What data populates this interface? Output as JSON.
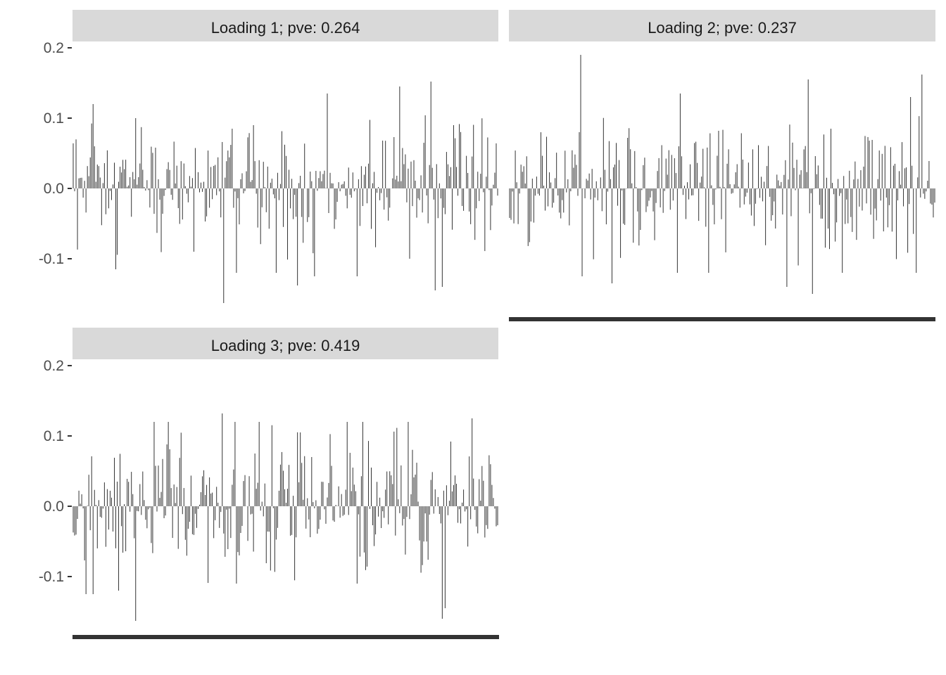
{
  "chart_data": {
    "type": "bar",
    "layout": "faceted 2x2 grid, 3 panels, shared y axis",
    "ylim": [
      -0.19,
      0.22
    ],
    "yticks": [
      -0.1,
      0.0,
      0.1,
      0.2
    ],
    "ytick_labels": [
      "-0.1",
      "0.0",
      "0.1",
      "0.2"
    ],
    "grid": false,
    "legend": "none",
    "bar_color": "#333333",
    "strip_color": "#d9d9d9",
    "axis_color": "#333333",
    "panels": [
      {
        "strip_label": "Loading 1; pve: 0.264",
        "n_bars": 300,
        "highlights": [
          [
            106,
            -0.163
          ],
          [
            44,
            0.1
          ],
          [
            127,
            0.09
          ],
          [
            179,
            0.135
          ],
          [
            230,
            0.145
          ],
          [
            252,
            0.152
          ],
          [
            255,
            -0.145
          ],
          [
            260,
            -0.14
          ],
          [
            158,
            -0.138
          ],
          [
            143,
            -0.12
          ],
          [
            30,
            -0.115
          ],
          [
            170,
            -0.125
          ],
          [
            200,
            -0.125
          ]
        ]
      },
      {
        "strip_label": "Loading 2; pve: 0.237",
        "n_bars": 300,
        "highlights": [
          [
            50,
            0.19
          ],
          [
            51,
            -0.125
          ],
          [
            290,
            0.162
          ],
          [
            210,
            0.155
          ],
          [
            213,
            -0.15
          ],
          [
            195,
            -0.14
          ],
          [
            72,
            -0.135
          ],
          [
            118,
            -0.12
          ],
          [
            140,
            -0.12
          ],
          [
            234,
            -0.12
          ],
          [
            282,
            0.13
          ],
          [
            286,
            -0.12
          ],
          [
            120,
            0.135
          ]
        ]
      },
      {
        "strip_label": "Loading 3; pve: 0.419",
        "n_bars": 300,
        "highlights": [
          [
            44,
            -0.163
          ],
          [
            105,
            0.132
          ],
          [
            114,
            0.12
          ],
          [
            128,
            0.075
          ],
          [
            236,
            0.12
          ],
          [
            260,
            -0.16
          ],
          [
            262,
            -0.145
          ],
          [
            281,
            0.125
          ],
          [
            67,
            0.12
          ],
          [
            115,
            -0.11
          ],
          [
            9,
            -0.125
          ],
          [
            14,
            -0.125
          ],
          [
            160,
            0.105
          ],
          [
            200,
            -0.11
          ]
        ]
      }
    ]
  }
}
